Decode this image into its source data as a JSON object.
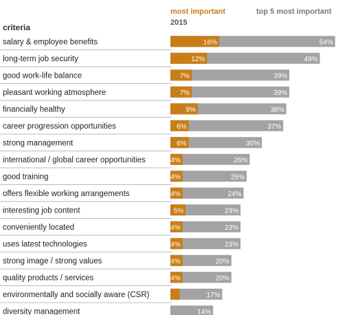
{
  "chart_data": {
    "type": "bar",
    "column_header": "criteria",
    "legend": {
      "most_important": "most important",
      "top5": "top 5 most important",
      "year": "2015"
    },
    "colors": {
      "most_important": "#c97d18",
      "top5": "#a3a3a3",
      "row_line": "#b9b9b9"
    },
    "xlim": [
      0,
      55
    ],
    "categories": [
      "salary & employee benefits",
      "long-term job security",
      "good work-life balance",
      "pleasant working atmosphere",
      "financially healthy",
      "career progression opportunities",
      "strong management",
      "international / global career opportunities",
      "good training",
      "offers flexible working arrangements",
      "interesting job content",
      "conveniently located",
      "uses latest technologies",
      "strong image / strong values",
      "quality products / services",
      "environmentally and socially aware (CSR)",
      "diversity management"
    ],
    "series": [
      {
        "name": "most important",
        "values": [
          16,
          12,
          7,
          7,
          9,
          6,
          6,
          4,
          4,
          4,
          5,
          4,
          4,
          4,
          4,
          3,
          0
        ],
        "labels": [
          "16%",
          "12%",
          "7%",
          "7%",
          "9%",
          "6%",
          "6%",
          "4%",
          "4%",
          "4%",
          "5%",
          "4%",
          "4%",
          "4%",
          "4%",
          "",
          ""
        ]
      },
      {
        "name": "top 5 most important",
        "values": [
          54,
          49,
          39,
          39,
          38,
          37,
          30,
          26,
          25,
          24,
          23,
          23,
          23,
          20,
          20,
          17,
          14
        ],
        "labels": [
          "54%",
          "49%",
          "39%",
          "39%",
          "38%",
          "37%",
          "30%",
          "26%",
          "25%",
          "24%",
          "23%",
          "23%",
          "23%",
          "20%",
          "20%",
          "17%",
          "14%"
        ]
      }
    ]
  }
}
